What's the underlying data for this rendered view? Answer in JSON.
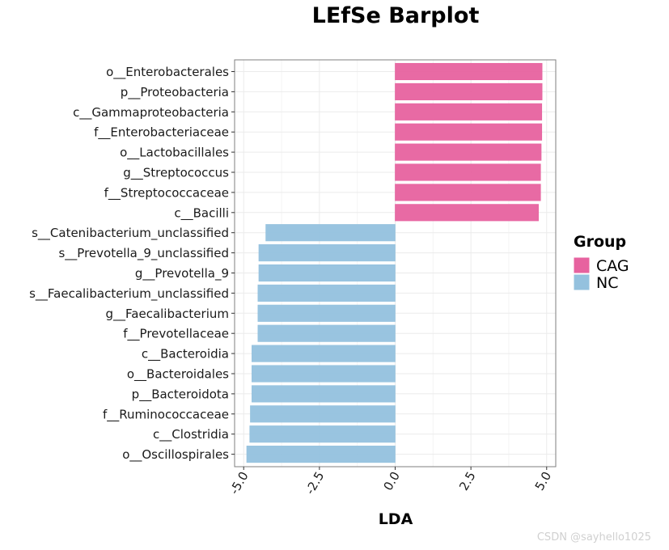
{
  "chart_data": {
    "type": "bar",
    "orientation": "horizontal",
    "title": "LEfSe Barplot",
    "xlabel": "LDA",
    "ylabel": "",
    "xlim": [
      -5.3,
      5.3
    ],
    "x_ticks": [
      -5.0,
      -2.5,
      0.0,
      2.5,
      5.0
    ],
    "x_tick_labels": [
      "-5.0",
      "-2.5",
      "0.0",
      "2.5",
      "5.0"
    ],
    "grid": true,
    "legend": {
      "title": "Group",
      "placement": "right",
      "entries": [
        {
          "name": "CAG",
          "color": "#E7629F"
        },
        {
          "name": "NC",
          "color": "#94C1DE"
        }
      ]
    },
    "categories": [
      "o__Enterobacterales",
      "p__Proteobacteria",
      "c__Gammaproteobacteria",
      "f__Enterobacteriaceae",
      "o__Lactobacillales",
      "g__Streptococcus",
      "f__Streptococcaceae",
      "c__Bacilli",
      "s__Catenibacterium_unclassified",
      "s__Prevotella_9_unclassified",
      "g__Prevotella_9",
      "s__Faecalibacterium_unclassified",
      "g__Faecalibacterium",
      "f__Prevotellaceae",
      "c__Bacteroidia",
      "o__Bacteroidales",
      "p__Bacteroidota",
      "f__Ruminococcaceae",
      "c__Clostridia",
      "o__Oscillospirales"
    ],
    "values": [
      4.85,
      4.85,
      4.84,
      4.84,
      4.82,
      4.8,
      4.8,
      4.73,
      -4.27,
      -4.5,
      -4.5,
      -4.53,
      -4.53,
      -4.53,
      -4.73,
      -4.73,
      -4.73,
      -4.78,
      -4.8,
      -4.9
    ],
    "groups": [
      "CAG",
      "CAG",
      "CAG",
      "CAG",
      "CAG",
      "CAG",
      "CAG",
      "CAG",
      "NC",
      "NC",
      "NC",
      "NC",
      "NC",
      "NC",
      "NC",
      "NC",
      "NC",
      "NC",
      "NC",
      "NC"
    ]
  },
  "watermark": "CSDN @sayhello1025"
}
